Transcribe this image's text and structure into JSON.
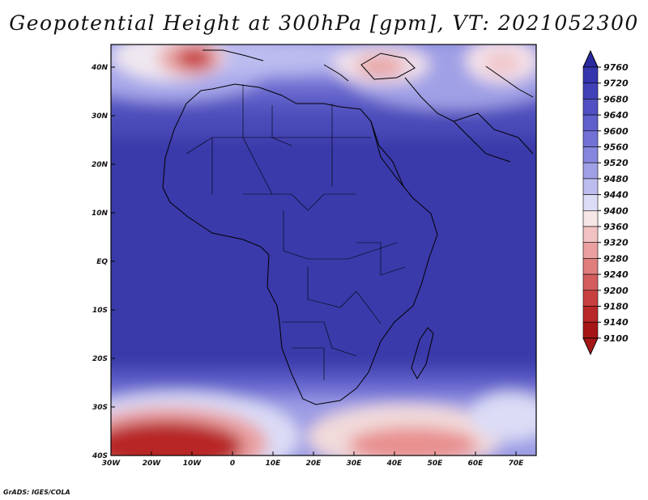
{
  "title": "Geopotential Height at 300hPa [gpm], VT: 2021052300",
  "credit": "GrADS: IGES/COLA",
  "map": {
    "variable": "Geopotential Height at 300hPa",
    "units": "gpm",
    "valid_time": "2021052300",
    "lon_range": [
      -30,
      75
    ],
    "lat_range": [
      -40,
      44
    ],
    "lon_ticks": [
      "30W",
      "20W",
      "10W",
      "0",
      "10E",
      "20E",
      "30E",
      "40E",
      "50E",
      "60E",
      "70E"
    ],
    "lat_ticks": [
      "40N",
      "30N",
      "20N",
      "10N",
      "EQ",
      "10S",
      "20S",
      "30S",
      "40S"
    ]
  },
  "colorbar": {
    "levels": [
      9760,
      9720,
      9680,
      9640,
      9600,
      9560,
      9520,
      9480,
      9440,
      9400,
      9360,
      9320,
      9280,
      9240,
      9200,
      9180,
      9140,
      9100
    ],
    "colors": [
      "#2a2aa0",
      "#3535ae",
      "#4141b8",
      "#5050c2",
      "#6060cc",
      "#7272d6",
      "#8686de",
      "#a0a0e6",
      "#bcbcee",
      "#dcdcf6",
      "#f6e6e6",
      "#f2c2c2",
      "#eaa0a0",
      "#e07e7e",
      "#d45c5c",
      "#c84040",
      "#b82828",
      "#a61616"
    ]
  }
}
